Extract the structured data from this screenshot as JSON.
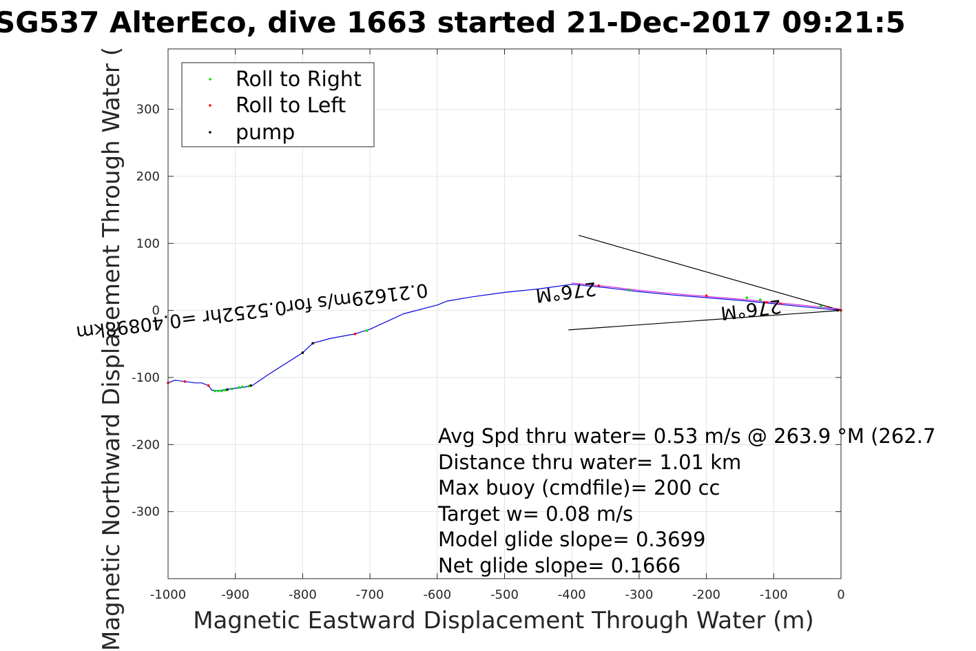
{
  "chart_data": {
    "type": "line",
    "title": "SG537 AlterEco, dive 1663 started 21-Dec-2017 09:21:5",
    "xlabel": "Magnetic Eastward Displacement Through Water (m)",
    "ylabel": "Magnetic Northward Displacement Through Water (",
    "xlim": [
      -1000,
      0
    ],
    "ylim": [
      -400,
      390
    ],
    "xticks": [
      -1000,
      -900,
      -800,
      -700,
      -600,
      -500,
      -400,
      -300,
      -200,
      -100,
      0
    ],
    "xtick_labels": [
      "-1000",
      "-900",
      "-800",
      "-700",
      "-600",
      "-500",
      "-400",
      "-300",
      "-200",
      "-100",
      "0"
    ],
    "yticks": [
      -300,
      -200,
      -100,
      0,
      100,
      200,
      300
    ],
    "ytick_labels": [
      "-300",
      "-200",
      "-100",
      "0",
      "100",
      "200",
      "300"
    ],
    "grid": true,
    "legend": {
      "placement": "top-left",
      "entries": [
        {
          "label": "Roll to Right",
          "color": "#00dd00"
        },
        {
          "label": "Roll to Left",
          "color": "#ff0000"
        },
        {
          "label": "pump",
          "color": "#000000"
        }
      ]
    },
    "track": {
      "name": "track",
      "color": "#0000dd",
      "x": [
        0,
        -50,
        -100,
        -150,
        -200,
        -250,
        -300,
        -350,
        -400,
        -450,
        -500,
        -550,
        -585,
        -600,
        -650,
        -700,
        -705,
        -710,
        -722,
        -760,
        -785,
        -800,
        -850,
        -875,
        -880,
        -890,
        -900,
        -915,
        -925,
        -935,
        -940,
        -950,
        -960,
        -975,
        -990,
        -1000
      ],
      "y": [
        0,
        5,
        10,
        15,
        19,
        23,
        28,
        34,
        39,
        32,
        27,
        20,
        14,
        8,
        -5,
        -28,
        -30,
        -31,
        -35,
        -42,
        -49,
        -63,
        -95,
        -112,
        -113,
        -115,
        -116,
        -118,
        -120,
        -119,
        -112,
        -108,
        -108,
        -106,
        -104,
        -108
      ]
    },
    "roll_right": {
      "x": [
        -880,
        -890,
        -895,
        -905,
        -915,
        -920,
        -925,
        -930,
        -705,
        -315,
        -140,
        -120,
        -30
      ],
      "y": [
        -113,
        -114,
        -115,
        -117,
        -119,
        -120,
        -120,
        -120,
        -30,
        30,
        19,
        16,
        6
      ]
    },
    "roll_left": {
      "x": [
        -1000,
        -975,
        -940,
        -722,
        -360,
        -200,
        -110,
        -90,
        -5,
        0
      ],
      "y": [
        -108,
        -106,
        -112,
        -35,
        37,
        22,
        12,
        10,
        1,
        0
      ]
    },
    "pump": {
      "x": [
        -800,
        -785,
        -877,
        -912,
        -5
      ],
      "y": [
        -63,
        -49,
        -112,
        -118,
        0
      ]
    },
    "wedge_lines": [
      {
        "x": [
          0,
          -390
        ],
        "y": [
          0,
          112
        ]
      },
      {
        "x": [
          0,
          -405
        ],
        "y": [
          0,
          -29
        ]
      }
    ],
    "flipped_labels": [
      {
        "text": "0.21629m/s for0.5252hr =0.40898km",
        "x": -615,
        "y": 40,
        "angle": -7
      },
      {
        "text": "276°M",
        "x": -365,
        "y": 42,
        "angle": -7
      },
      {
        "text": "276°M",
        "x": -90,
        "y": 16,
        "angle": -7
      }
    ],
    "stats": [
      "Avg Spd thru water=  0.53 m/s @ 263.9 °M (262.7",
      "Distance thru water=  1.01 km",
      "Max buoy (cmdfile)= 200 cc",
      "Target w= 0.08 m/s",
      "Model glide slope= 0.3699",
      "Net glide slope= 0.1666"
    ]
  }
}
